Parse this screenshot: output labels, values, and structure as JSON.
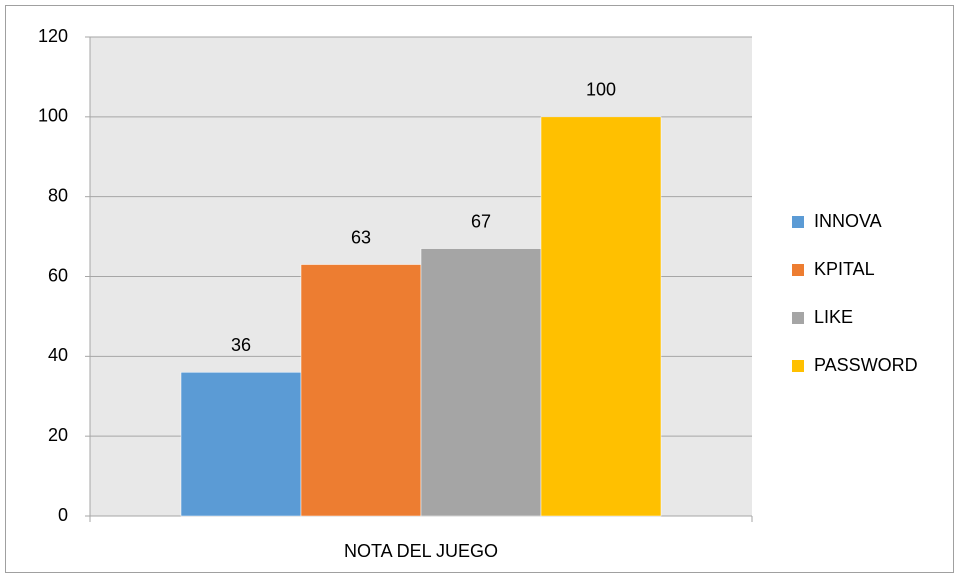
{
  "chart_data": {
    "type": "bar",
    "categories": [
      "NOTA DEL JUEGO"
    ],
    "series": [
      {
        "name": "INNOVA",
        "color": "#5b9bd5",
        "values": [
          36
        ]
      },
      {
        "name": "KPITAL",
        "color": "#ed7d31",
        "values": [
          63
        ]
      },
      {
        "name": "LIKE",
        "color": "#a5a5a5",
        "values": [
          67
        ]
      },
      {
        "name": "PASSWORD",
        "color": "#ffc000",
        "values": [
          100
        ]
      }
    ],
    "ylim": [
      0,
      120
    ],
    "yticks": [
      0,
      20,
      40,
      60,
      80,
      100,
      120
    ],
    "grid": true,
    "legend": "right"
  }
}
